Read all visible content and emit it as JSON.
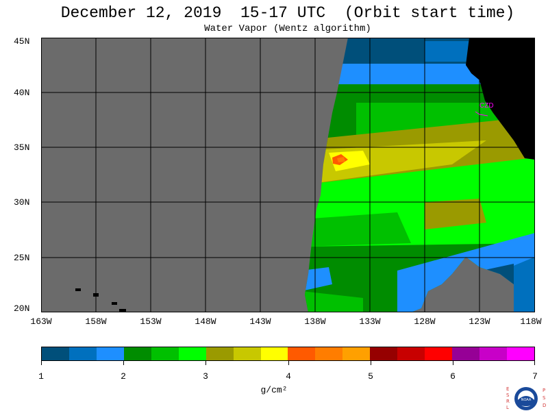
{
  "title": "December 12, 2019  15-17 UTC  (Orbit start time)",
  "subtitle": "Water Vapor (Wentz algorithm)",
  "map": {
    "lat_labels": [
      "45N",
      "40N",
      "35N",
      "30N",
      "25N",
      "20N"
    ],
    "lon_labels": [
      "163W",
      "158W",
      "153W",
      "148W",
      "143W",
      "138W",
      "133W",
      "128W",
      "123W",
      "118W"
    ],
    "station_label": "CZD",
    "colors": {
      "no_data": "#6b6b6b",
      "land": "#000000",
      "grid": "#000000",
      "station": "#ff00ff"
    }
  },
  "colorbar": {
    "colors": [
      "#004f7a",
      "#0070be",
      "#1e8fff",
      "#008c00",
      "#00c000",
      "#00ff00",
      "#9a9a00",
      "#c8c800",
      "#ffff00",
      "#ff5a00",
      "#ff7d00",
      "#ffa000",
      "#960000",
      "#c80000",
      "#ff0000",
      "#960096",
      "#c800c8",
      "#ff00ff"
    ],
    "tick_labels": [
      "1",
      "2",
      "3",
      "4",
      "5",
      "6",
      "7"
    ],
    "units": "g/cm²"
  },
  "logo": {
    "left_letters": [
      "E",
      "S",
      "R",
      "L"
    ],
    "right_letters": [
      "P",
      "S",
      "D"
    ],
    "center_text": "NOAA"
  }
}
